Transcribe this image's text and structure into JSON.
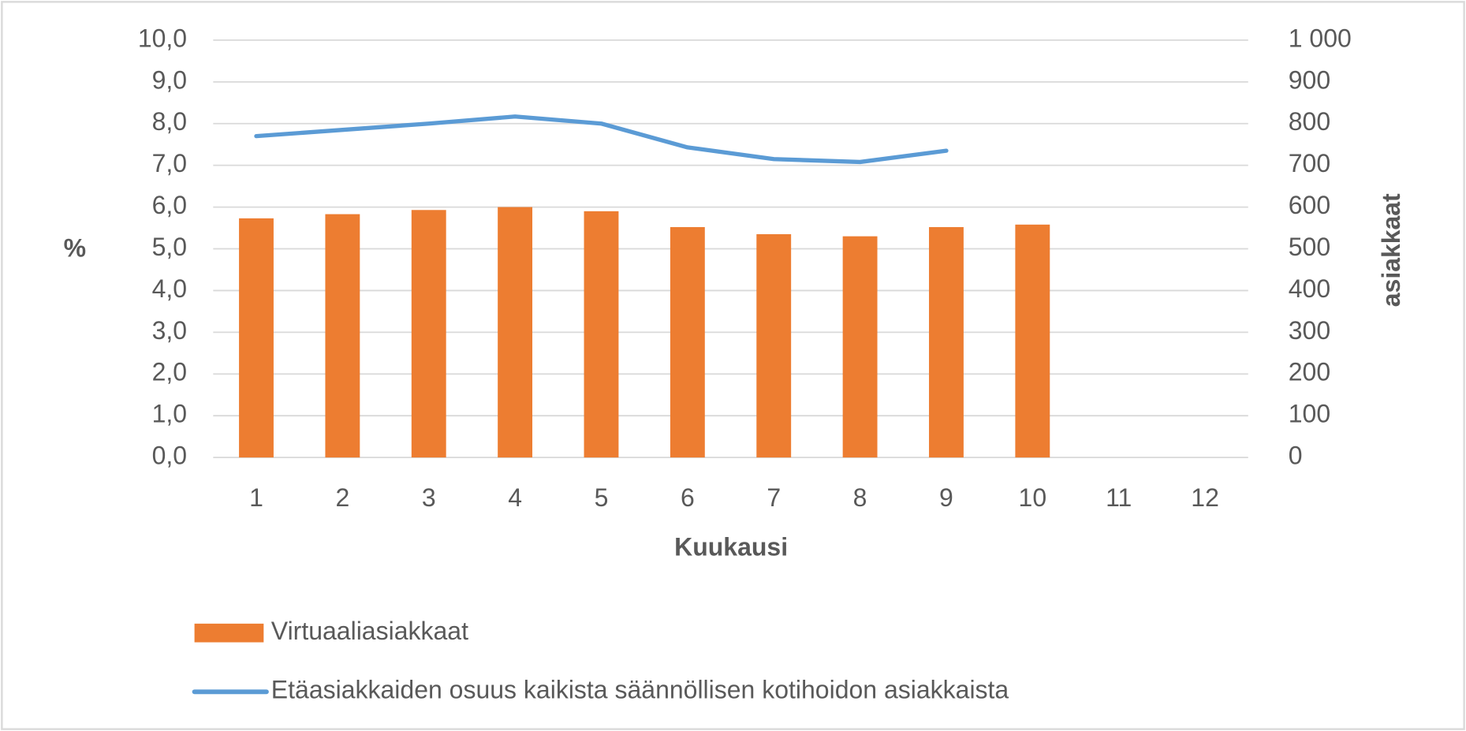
{
  "chart_data": {
    "type": "bar_line",
    "x_label": "Kuukausi",
    "y_label": "%",
    "y2_label": "asiakkaat",
    "categories": [
      1,
      2,
      3,
      4,
      5,
      6,
      7,
      8,
      9,
      10,
      11,
      12
    ],
    "series": [
      {
        "name": "Virtuaaliasiakkaat",
        "type": "bar",
        "axis": "y2",
        "color": "#ed7d31",
        "values": [
          573,
          583,
          593,
          600,
          590,
          552,
          535,
          530,
          552,
          558,
          null,
          null
        ]
      },
      {
        "name": "Etäasiakkaiden osuus kaikista säännöllisen kotihoidon asiakkaista",
        "type": "line",
        "axis": "y",
        "color": "#5b9bd5",
        "values": [
          7.7,
          7.85,
          8.0,
          8.17,
          8.0,
          7.43,
          7.15,
          7.08,
          7.35,
          null,
          null,
          null
        ]
      }
    ],
    "ylim": [
      0,
      10
    ],
    "yticks": [
      {
        "value": 0,
        "label": "0,0"
      },
      {
        "value": 1,
        "label": "1,0"
      },
      {
        "value": 2,
        "label": "2,0"
      },
      {
        "value": 3,
        "label": "3,0"
      },
      {
        "value": 4,
        "label": "4,0"
      },
      {
        "value": 5,
        "label": "5,0"
      },
      {
        "value": 6,
        "label": "6,0"
      },
      {
        "value": 7,
        "label": "7,0"
      },
      {
        "value": 8,
        "label": "8,0"
      },
      {
        "value": 9,
        "label": "9,0"
      },
      {
        "value": 10,
        "label": "10,0"
      }
    ],
    "y2lim": [
      0,
      1000
    ],
    "y2ticks": [
      0,
      100,
      200,
      300,
      400,
      500,
      600,
      700,
      800,
      900,
      {
        "value": 1000,
        "label": "1 000"
      }
    ],
    "grid": true,
    "legend": "bottom"
  }
}
